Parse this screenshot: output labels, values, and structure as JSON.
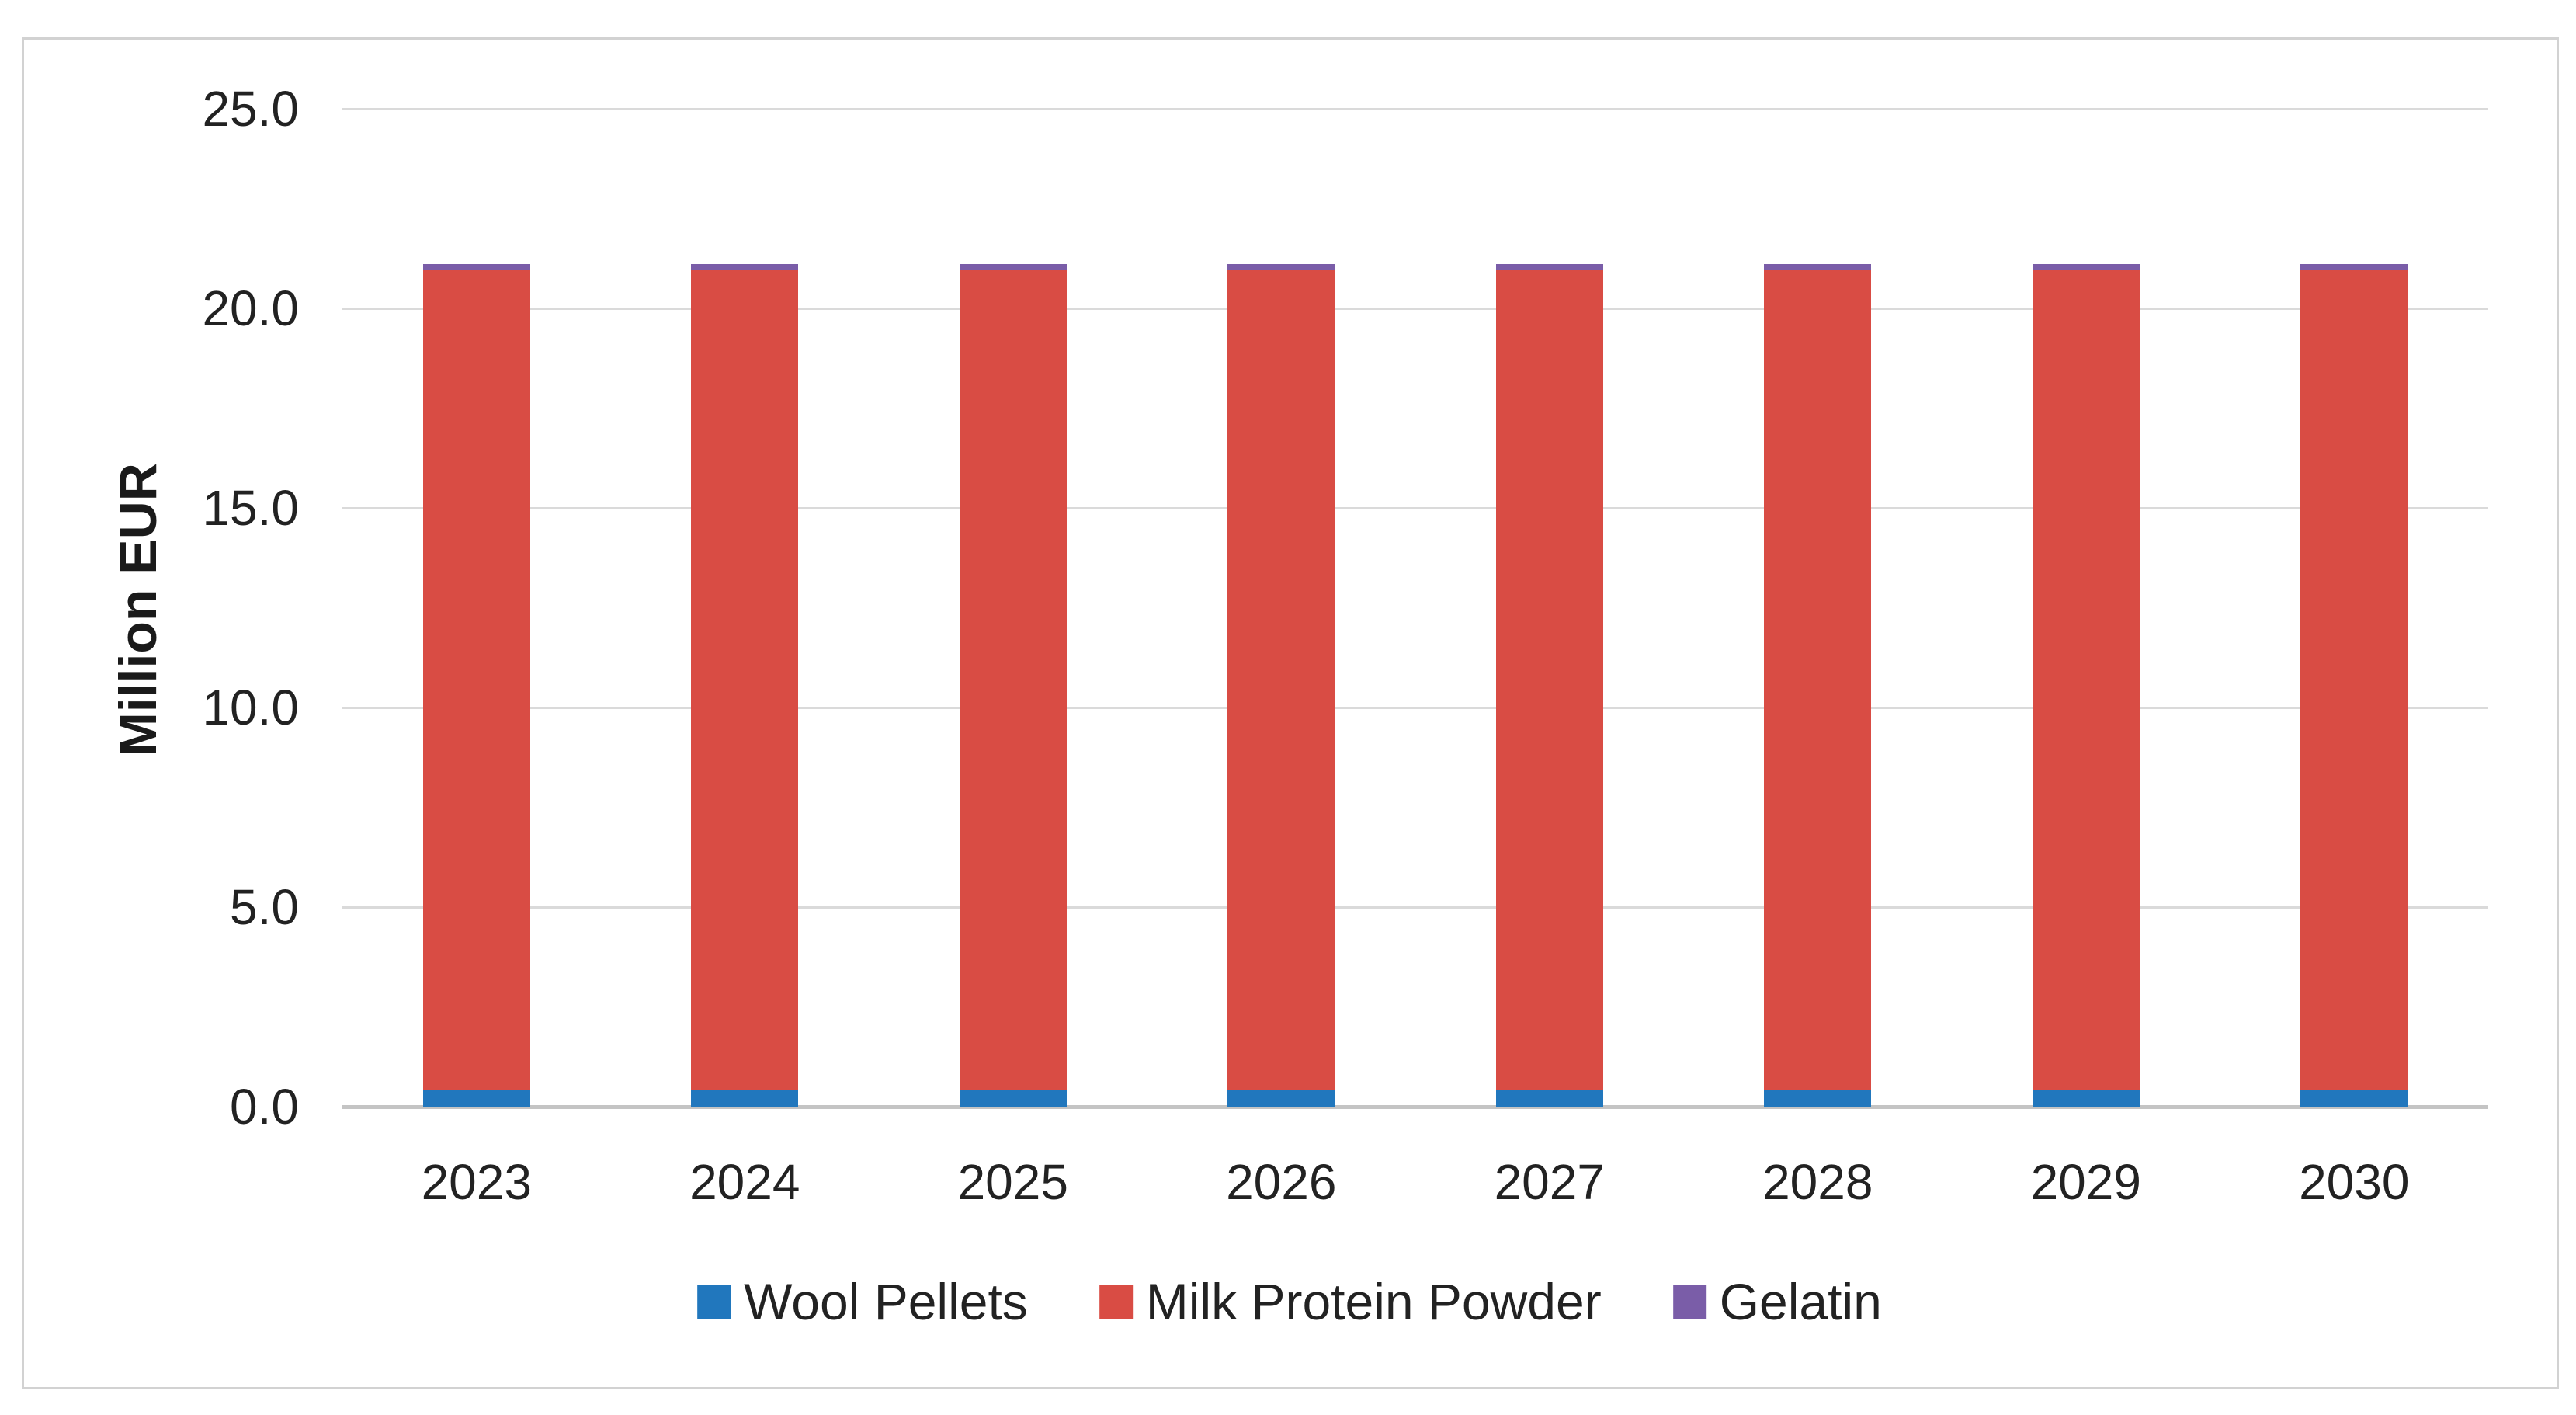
{
  "chart_data": {
    "type": "bar",
    "stacked": true,
    "title": "",
    "xlabel": "",
    "ylabel": "Million EUR",
    "categories": [
      "2023",
      "2024",
      "2025",
      "2026",
      "2027",
      "2028",
      "2029",
      "2030"
    ],
    "series": [
      {
        "name": "Wool Pellets",
        "color": "#2177bd",
        "values": [
          0.4,
          0.4,
          0.4,
          0.4,
          0.4,
          0.4,
          0.4,
          0.4
        ]
      },
      {
        "name": "Milk Protein Powder",
        "color": "#d94c44",
        "values": [
          20.55,
          20.55,
          20.55,
          20.55,
          20.55,
          20.55,
          20.55,
          20.55
        ]
      },
      {
        "name": "Gelatin",
        "color": "#7a5da8",
        "values": [
          0.15,
          0.15,
          0.15,
          0.15,
          0.15,
          0.15,
          0.15,
          0.15
        ]
      }
    ],
    "bar_total_each_year": 21.1,
    "ylim": [
      0,
      25
    ],
    "ytick_values": [
      0,
      5,
      10,
      15,
      20,
      25
    ],
    "ytick_labels": [
      "0.0",
      "5.0",
      "10.0",
      "15.0",
      "20.0",
      "25.0"
    ],
    "grid": true,
    "legend_position": "bottom"
  },
  "colors": {
    "background": "#ffffff",
    "frame_border": "#d2d2d2",
    "gridline": "#dadada",
    "zero_axis_line": "#c4c4c4",
    "text": "#222222"
  }
}
